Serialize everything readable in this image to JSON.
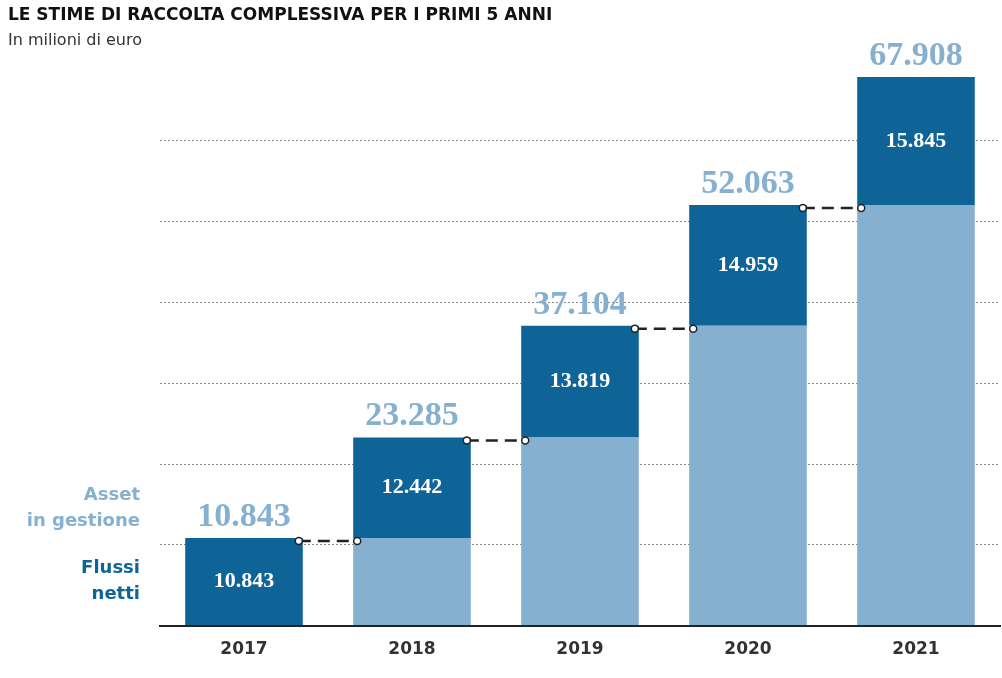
{
  "chart_data": {
    "type": "bar",
    "title": "LE STIME DI RACCOLTA COMPLESSIVA PER I PRIMI 5 ANNI",
    "subtitle": "In milioni di euro",
    "categories": [
      "2017",
      "2018",
      "2019",
      "2020",
      "2021"
    ],
    "stacked": true,
    "series": [
      {
        "name": "Asset in gestione",
        "color": "#86b0d0",
        "values": [
          0,
          10843,
          23285,
          37104,
          52063
        ]
      },
      {
        "name": "Flussi netti",
        "color": "#0e6397",
        "values": [
          10843,
          12442,
          13819,
          14959,
          15845
        ],
        "value_labels": [
          "10.843",
          "12.442",
          "13.819",
          "14.959",
          "15.845"
        ]
      }
    ],
    "totals": [
      "10.843",
      "23.285",
      "37.104",
      "52.063",
      "67.908"
    ],
    "yticks": [
      {
        "value": 0,
        "label": null
      },
      {
        "value": 10000,
        "label": null
      },
      {
        "value": 20000,
        "label": null
      },
      {
        "value": 30000,
        "label": null
      },
      {
        "value": 40000,
        "label": null
      },
      {
        "value": 50000,
        "label": null
      },
      {
        "value": 60000,
        "label": null
      }
    ],
    "tick_labels": "x",
    "grid": "y",
    "legend": "left"
  }
}
